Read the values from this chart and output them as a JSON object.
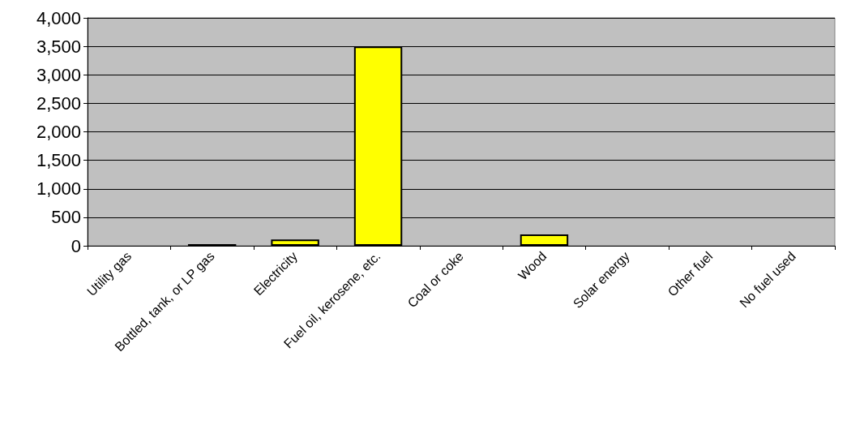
{
  "chart_data": {
    "type": "bar",
    "categories": [
      "Utility gas",
      "Bottled, tank, or LP gas",
      "Electricity",
      "Fuel oil, kerosene, etc.",
      "Coal or coke",
      "Wood",
      "Solar energy",
      "Other fuel",
      "No fuel used"
    ],
    "values": [
      0,
      30,
      110,
      3500,
      0,
      200,
      0,
      0,
      0
    ],
    "color": "#ffff00",
    "ylim": [
      0,
      4000
    ],
    "yticks": [
      {
        "value": 0,
        "label": "0"
      },
      {
        "value": 500,
        "label": "500"
      },
      {
        "value": 1000,
        "label": "1,000"
      },
      {
        "value": 1500,
        "label": "1,500"
      },
      {
        "value": 2000,
        "label": "2,000"
      },
      {
        "value": 2500,
        "label": "2,500"
      },
      {
        "value": 3000,
        "label": "3,000"
      },
      {
        "value": 3500,
        "label": "3,500"
      },
      {
        "value": 4000,
        "label": "4,000"
      }
    ],
    "grid": "y"
  }
}
